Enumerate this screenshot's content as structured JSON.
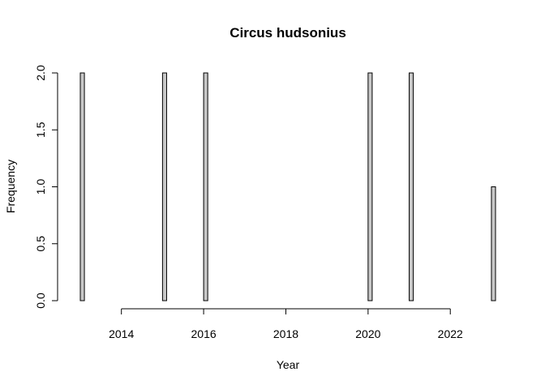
{
  "chart_data": {
    "type": "bar",
    "title": "Circus hudsonius",
    "xlabel": "Year",
    "ylabel": "Frequency",
    "bin_width": 0.1,
    "x": [
      2013.0,
      2015.0,
      2016.0,
      2020.0,
      2021.0,
      2023.0
    ],
    "values": [
      2,
      2,
      2,
      2,
      2,
      1
    ],
    "xlim": [
      2013.0,
      2023.1
    ],
    "ylim": [
      0,
      2
    ],
    "xticks": [
      2014,
      2016,
      2018,
      2020,
      2022
    ],
    "yticks": [
      0.0,
      0.5,
      1.0,
      1.5,
      2.0
    ],
    "ytick_labels": [
      "0.0",
      "0.5",
      "1.0",
      "1.5",
      "2.0"
    ],
    "bar_color": "#c8c8c8",
    "grid": false,
    "legend": "none"
  }
}
